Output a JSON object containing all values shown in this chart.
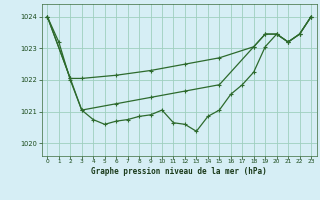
{
  "title": "Graphe pression niveau de la mer (hPa)",
  "background_color": "#d6eef5",
  "grid_color": "#9ecfbf",
  "line_color": "#2d6a2d",
  "xlim": [
    -0.5,
    23.5
  ],
  "ylim": [
    1019.6,
    1024.4
  ],
  "yticks": [
    1020,
    1021,
    1022,
    1023,
    1024
  ],
  "xticks": [
    0,
    1,
    2,
    3,
    4,
    5,
    6,
    7,
    8,
    9,
    10,
    11,
    12,
    13,
    14,
    15,
    16,
    17,
    18,
    19,
    20,
    21,
    22,
    23
  ],
  "series1_x": [
    0,
    1,
    2,
    3,
    4,
    5,
    6,
    7,
    8,
    9,
    10,
    11,
    12,
    13,
    14,
    15,
    16,
    17,
    18,
    19,
    20,
    21,
    22,
    23
  ],
  "series1_y": [
    1024.0,
    1023.2,
    1022.0,
    1021.05,
    1020.75,
    1020.6,
    1020.7,
    1020.75,
    1020.85,
    1020.9,
    1021.05,
    1020.65,
    1020.6,
    1020.38,
    1020.85,
    1021.05,
    1021.55,
    1021.85,
    1022.25,
    1023.05,
    1023.45,
    1023.2,
    1023.45,
    1024.0
  ],
  "series2_x": [
    0,
    2,
    3,
    6,
    9,
    12,
    15,
    18,
    19,
    20,
    21,
    22,
    23
  ],
  "series2_y": [
    1024.0,
    1022.05,
    1022.05,
    1022.15,
    1022.3,
    1022.5,
    1022.7,
    1023.05,
    1023.45,
    1023.45,
    1023.2,
    1023.45,
    1024.0
  ],
  "series3_x": [
    0,
    2,
    3,
    6,
    9,
    12,
    15,
    18,
    19,
    20,
    21,
    22,
    23
  ],
  "series3_y": [
    1024.0,
    1022.05,
    1021.05,
    1021.25,
    1021.45,
    1021.65,
    1021.85,
    1023.05,
    1023.45,
    1023.45,
    1023.2,
    1023.45,
    1024.0
  ]
}
